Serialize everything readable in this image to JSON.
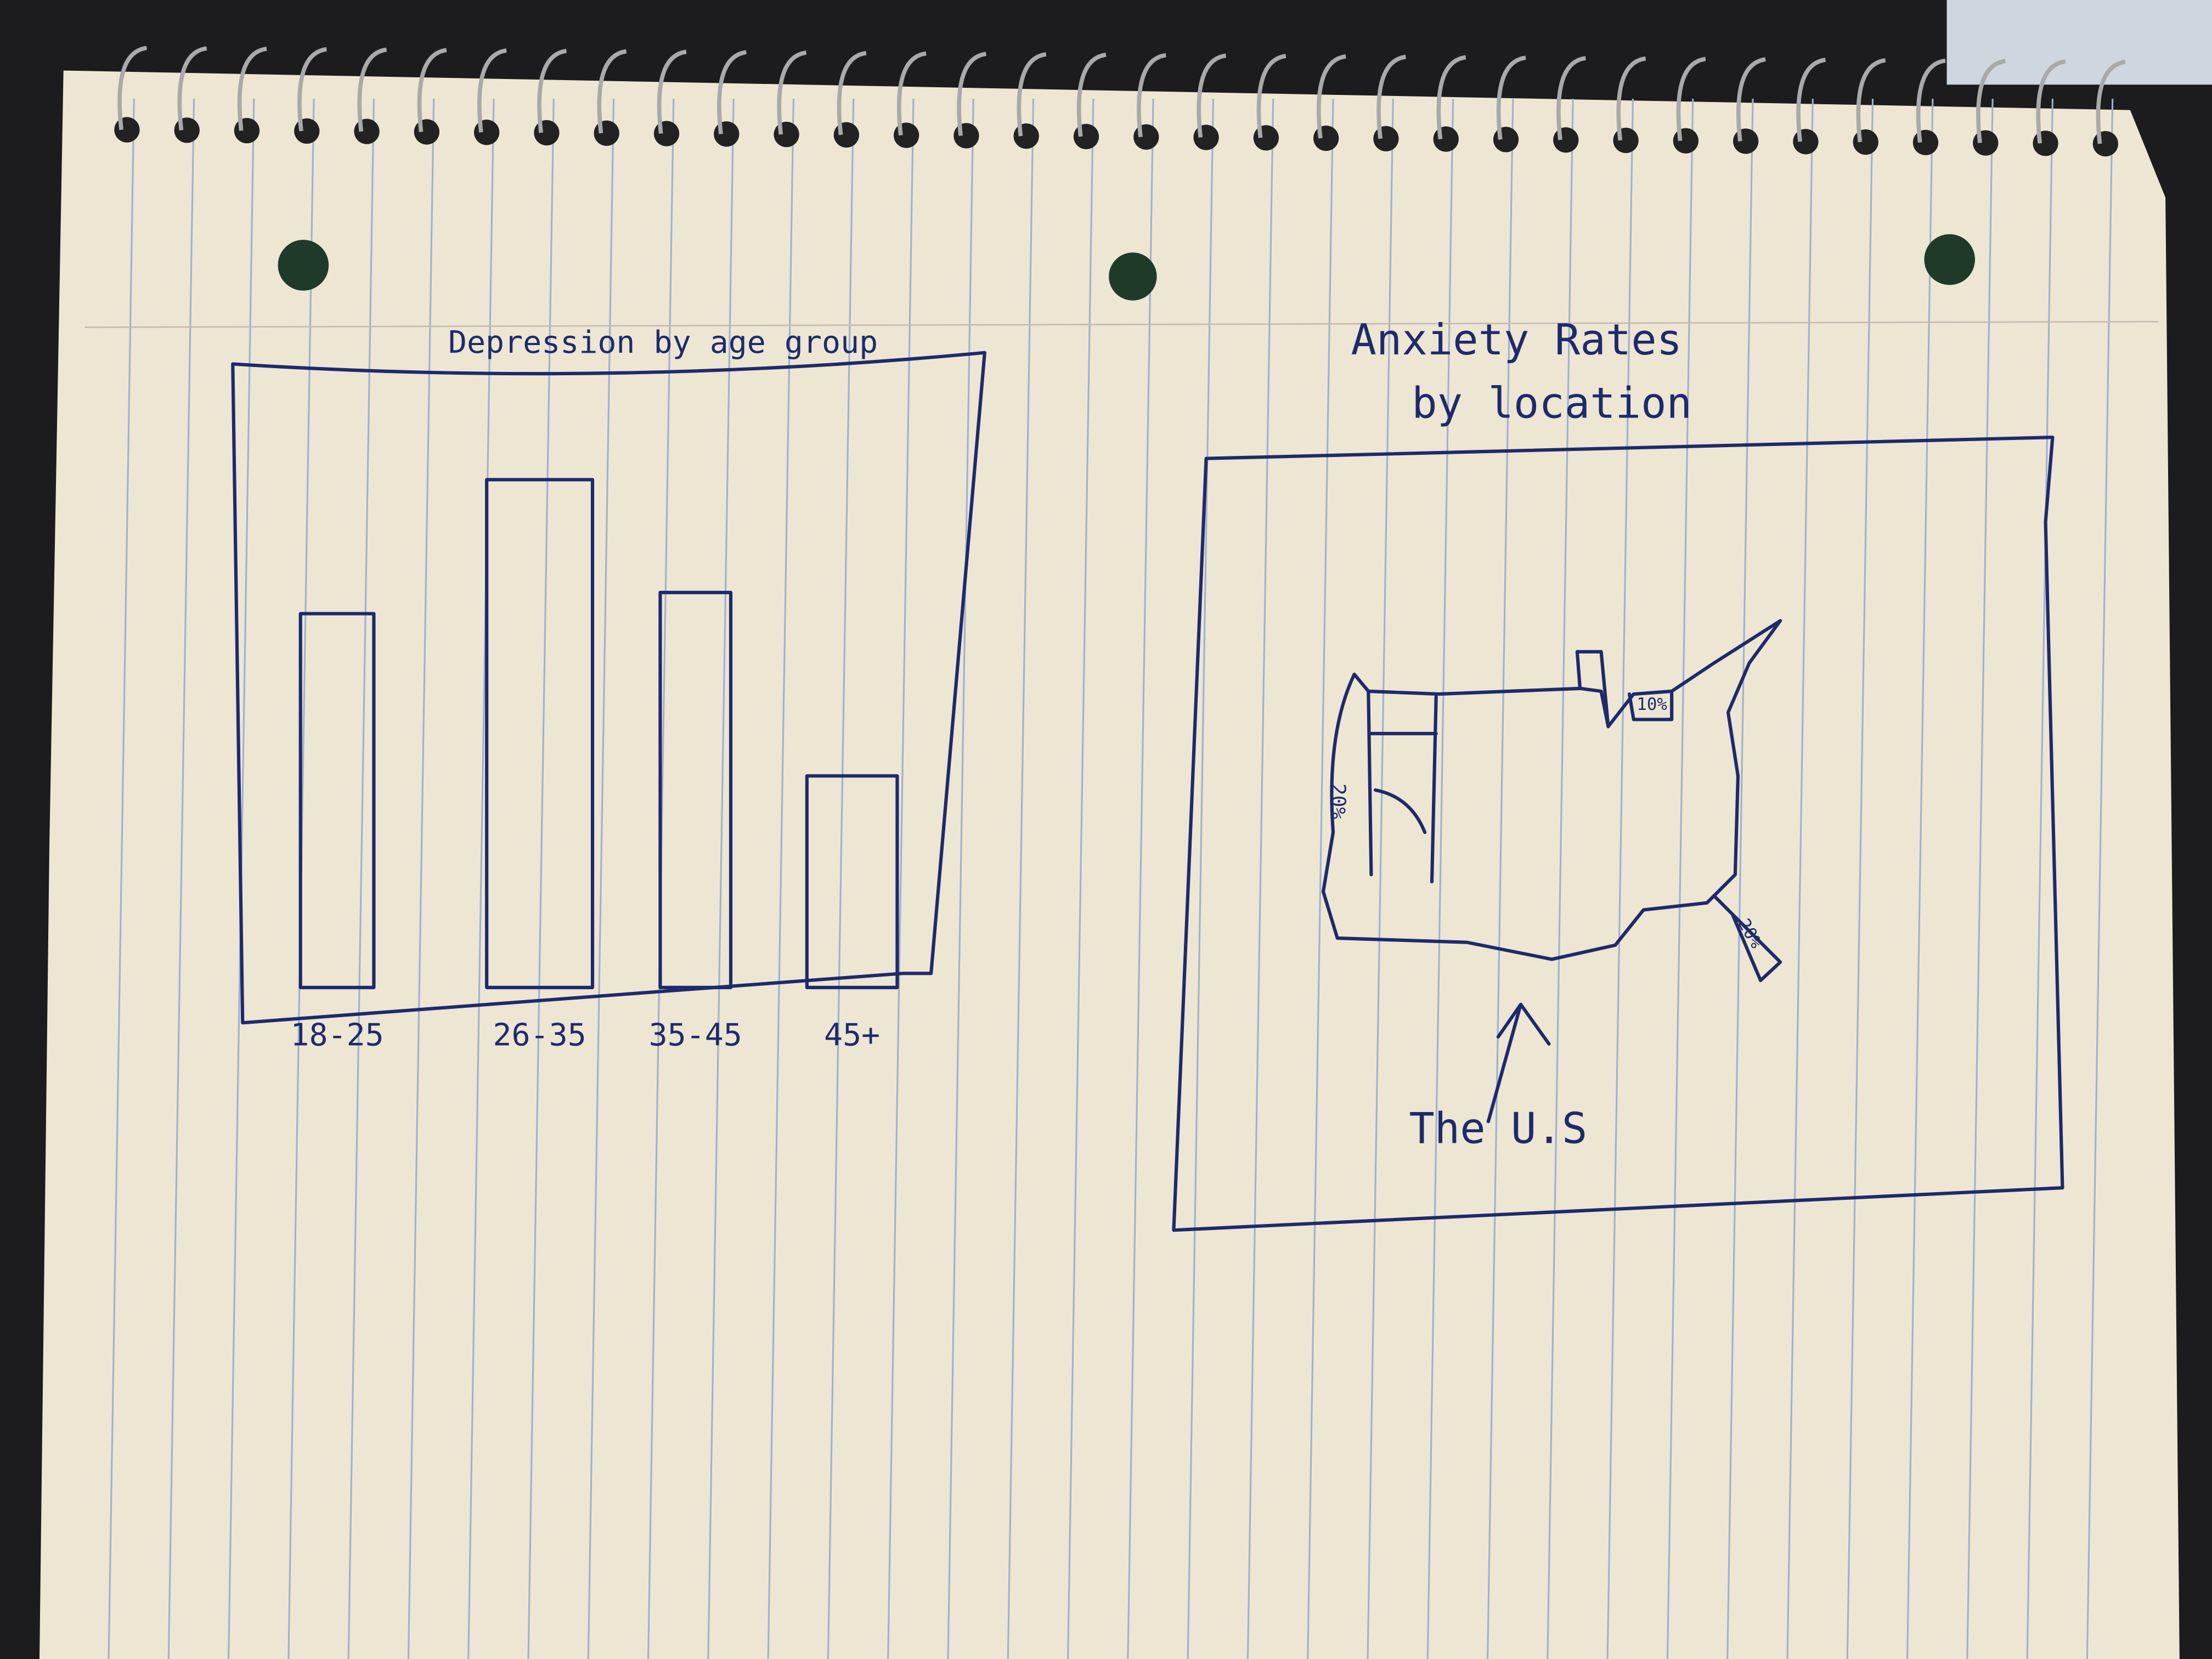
{
  "chart_data": {
    "type": "bar",
    "title": "Depression by age group",
    "categories": [
      "18-25",
      "26-35",
      "35-45",
      "45+"
    ],
    "values": [
      265,
      360,
      280,
      150
    ],
    "color": "none"
  },
  "map": {
    "title": [
      "Anxiety Rates",
      "by location"
    ],
    "labels": [
      "20%",
      "10%",
      "20%"
    ],
    "caption": "The U.S"
  }
}
